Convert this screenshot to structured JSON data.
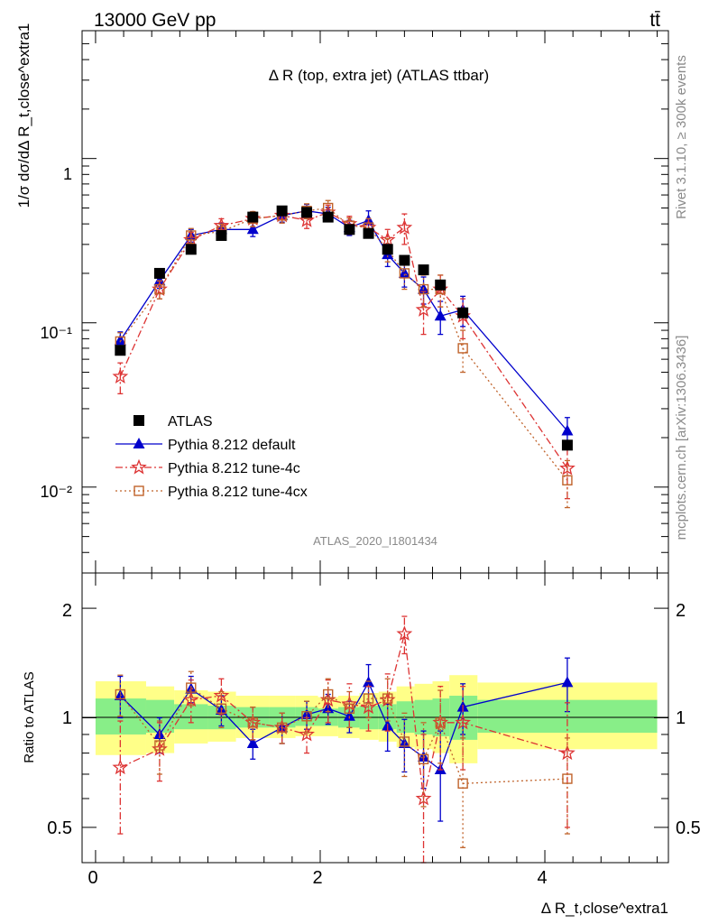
{
  "header": {
    "left": "13000 GeV pp",
    "right": "tt̄"
  },
  "side_labels": {
    "rivet": "Rivet 3.1.10, ≥ 300k events",
    "mcplots": "mcplots.cern.ch [arXiv:1306.3436]"
  },
  "colors": {
    "atlas": "#000000",
    "default": "#0000cc",
    "tune4c": "#dd3333",
    "tune4cx": "#c0632b",
    "band_yellow": "#ffff88",
    "band_green": "#88ee88"
  },
  "chart_data": [
    {
      "type": "scatter",
      "title": "Δ R (top, extra jet) (ATLAS ttbar)",
      "analysis_id": "ATLAS_2020_I1801434",
      "ylabel": "1/σ dσ/dΔ R_t,close^extra1",
      "y_scale": "log",
      "ylim": [
        0.003,
        6.0
      ],
      "y_ticks": [
        "10⁻²",
        "10⁻¹",
        "1"
      ],
      "xlim": [
        -0.12,
        5.1
      ],
      "legend_placement": "bottom-left",
      "legend": [
        {
          "label": "ATLAS",
          "key": "atlas"
        },
        {
          "label": "Pythia 8.212 default",
          "key": "default"
        },
        {
          "label": "Pythia 8.212 tune-4c",
          "key": "tune4c"
        },
        {
          "label": "Pythia 8.212 tune-4cx",
          "key": "tune4cx"
        }
      ],
      "x": [
        0.22,
        0.57,
        0.85,
        1.12,
        1.4,
        1.66,
        1.88,
        2.07,
        2.26,
        2.43,
        2.6,
        2.75,
        2.92,
        3.07,
        3.27,
        4.2
      ],
      "atlas": [
        0.068,
        0.2,
        0.28,
        0.34,
        0.44,
        0.48,
        0.47,
        0.44,
        0.37,
        0.35,
        0.28,
        0.24,
        0.21,
        0.17,
        0.115,
        0.018
      ],
      "series": [
        {
          "name": "Pythia 8.212 default",
          "key": "default",
          "values": [
            0.078,
            0.18,
            0.34,
            0.37,
            0.37,
            0.45,
            0.48,
            0.46,
            0.38,
            0.42,
            0.26,
            0.2,
            0.16,
            0.11,
            0.12,
            0.022
          ],
          "errors": [
            0.01,
            0.018,
            0.03,
            0.035,
            0.035,
            0.04,
            0.045,
            0.045,
            0.04,
            0.06,
            0.04,
            0.035,
            0.03,
            0.025,
            0.025,
            0.0045
          ]
        },
        {
          "name": "Pythia 8.212 tune-4c",
          "key": "tune4c",
          "values": [
            0.047,
            0.16,
            0.32,
            0.39,
            0.43,
            0.45,
            0.42,
            0.47,
            0.4,
            0.38,
            0.32,
            0.38,
            0.12,
            0.16,
            0.11,
            0.013
          ],
          "errors": [
            0.01,
            0.02,
            0.035,
            0.04,
            0.045,
            0.045,
            0.045,
            0.05,
            0.045,
            0.05,
            0.05,
            0.08,
            0.035,
            0.035,
            0.03,
            0.0045
          ]
        },
        {
          "name": "Pythia 8.212 tune-4cx",
          "key": "tune4cx",
          "values": [
            0.077,
            0.16,
            0.34,
            0.36,
            0.43,
            0.45,
            0.48,
            0.5,
            0.39,
            0.38,
            0.28,
            0.2,
            0.16,
            0.16,
            0.07,
            0.011
          ],
          "errors": [
            0.01,
            0.02,
            0.035,
            0.038,
            0.045,
            0.045,
            0.05,
            0.055,
            0.045,
            0.05,
            0.045,
            0.04,
            0.035,
            0.035,
            0.02,
            0.0035
          ]
        }
      ]
    },
    {
      "type": "line",
      "ylabel": "Ratio to ATLAS",
      "y_scale": "log",
      "ylim": [
        0.4,
        2.5
      ],
      "y_ticks": [
        "0.5",
        "1",
        "2"
      ],
      "xlabel": "Δ R_t,close^extra1",
      "x_ticks": [
        "0",
        "2",
        "4"
      ],
      "xlim": [
        -0.12,
        5.1
      ],
      "x": [
        0.22,
        0.57,
        0.85,
        1.12,
        1.4,
        1.66,
        1.88,
        2.07,
        2.26,
        2.43,
        2.6,
        2.75,
        2.92,
        3.07,
        3.27,
        4.2
      ],
      "bins": [
        [
          0.0,
          0.45
        ],
        [
          0.45,
          0.7
        ],
        [
          0.7,
          1.0
        ],
        [
          1.0,
          1.25
        ],
        [
          1.25,
          1.55
        ],
        [
          1.55,
          1.78
        ],
        [
          1.78,
          1.98
        ],
        [
          1.98,
          2.16
        ],
        [
          2.16,
          2.35
        ],
        [
          2.35,
          2.52
        ],
        [
          2.52,
          2.68
        ],
        [
          2.68,
          2.84
        ],
        [
          2.84,
          3.0
        ],
        [
          3.0,
          3.15
        ],
        [
          3.15,
          3.4
        ],
        [
          3.4,
          5.0
        ]
      ],
      "band_yellow": [
        [
          0.79,
          1.26
        ],
        [
          0.8,
          1.22
        ],
        [
          0.85,
          1.19
        ],
        [
          0.86,
          1.18
        ],
        [
          0.88,
          1.15
        ],
        [
          0.88,
          1.15
        ],
        [
          0.89,
          1.15
        ],
        [
          0.89,
          1.14
        ],
        [
          0.88,
          1.15
        ],
        [
          0.87,
          1.17
        ],
        [
          0.86,
          1.18
        ],
        [
          0.83,
          1.22
        ],
        [
          0.82,
          1.24
        ],
        [
          0.8,
          1.26
        ],
        [
          0.75,
          1.31
        ],
        [
          0.82,
          1.25
        ]
      ],
      "band_green": [
        [
          0.9,
          1.13
        ],
        [
          0.91,
          1.12
        ],
        [
          0.93,
          1.09
        ],
        [
          0.93,
          1.08
        ],
        [
          0.94,
          1.07
        ],
        [
          0.94,
          1.07
        ],
        [
          0.95,
          1.07
        ],
        [
          0.95,
          1.06
        ],
        [
          0.94,
          1.07
        ],
        [
          0.93,
          1.08
        ],
        [
          0.93,
          1.09
        ],
        [
          0.91,
          1.11
        ],
        [
          0.9,
          1.12
        ],
        [
          0.89,
          1.13
        ],
        [
          0.87,
          1.15
        ],
        [
          0.91,
          1.12
        ]
      ],
      "series": [
        {
          "name": "Pythia 8.212 default",
          "key": "default",
          "values": [
            1.15,
            0.9,
            1.2,
            1.05,
            0.85,
            0.94,
            1.02,
            1.06,
            1.01,
            1.25,
            0.95,
            0.85,
            0.78,
            0.72,
            1.07,
            1.25
          ],
          "errors": [
            0.15,
            0.1,
            0.1,
            0.1,
            0.08,
            0.09,
            0.09,
            0.1,
            0.1,
            0.15,
            0.14,
            0.14,
            0.14,
            0.2,
            0.17,
            0.21
          ]
        },
        {
          "name": "Pythia 8.212 tune-4c",
          "key": "tune4c",
          "values": [
            0.73,
            0.82,
            1.12,
            1.15,
            0.97,
            0.94,
            0.9,
            1.12,
            1.09,
            1.07,
            1.12,
            1.7,
            0.6,
            0.97,
            0.97,
            0.8
          ],
          "errors": [
            0.25,
            0.15,
            0.15,
            0.13,
            0.1,
            0.09,
            0.1,
            0.15,
            0.15,
            0.15,
            0.2,
            0.2,
            0.3,
            0.25,
            0.25,
            0.3
          ]
        },
        {
          "name": "Pythia 8.212 tune-4cx",
          "key": "tune4cx",
          "values": [
            1.16,
            0.84,
            1.21,
            1.06,
            0.97,
            0.94,
            1.01,
            1.16,
            1.06,
            1.13,
            1.13,
            0.86,
            0.77,
            0.97,
            0.66,
            0.68
          ],
          "errors": [
            0.15,
            0.14,
            0.13,
            0.12,
            0.1,
            0.09,
            0.1,
            0.12,
            0.12,
            0.13,
            0.15,
            0.17,
            0.2,
            0.22,
            0.22,
            0.2
          ]
        }
      ]
    }
  ]
}
